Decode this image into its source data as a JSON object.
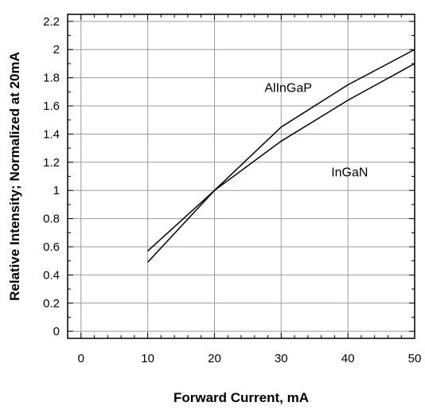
{
  "chart_data": {
    "type": "line",
    "xlabel": "Forward Current, mA",
    "ylabel": "Relative Intensity; Normalized at 20mA",
    "xlim": [
      -2,
      50
    ],
    "ylim": [
      -0.05,
      2.25
    ],
    "xticks": [
      0,
      10,
      20,
      30,
      40,
      50
    ],
    "yticks": [
      0,
      0.2,
      0.4,
      0.6,
      0.8,
      1,
      1.2,
      1.4,
      1.6,
      1.8,
      2,
      2.2
    ],
    "xtick_labels": [
      "0",
      "10",
      "20",
      "30",
      "40",
      "50"
    ],
    "ytick_labels": [
      "0",
      "0.2",
      "0.4",
      "0.6",
      "0.8",
      "1",
      "1.2",
      "1.4",
      "1.6",
      "1.8",
      "2",
      "2.2"
    ],
    "grid": true,
    "series": [
      {
        "x": [
          10,
          20,
          30,
          40,
          50
        ],
        "values": [
          0.49,
          1.0,
          1.45,
          1.75,
          2.0
        ]
      },
      {
        "x": [
          10,
          20,
          30,
          40,
          50
        ],
        "values": [
          0.57,
          1.0,
          1.35,
          1.64,
          1.9
        ]
      }
    ],
    "annotations": [
      {
        "text": "AlInGaP",
        "x": 27.5,
        "y": 1.7
      },
      {
        "text": "InGaN",
        "x": 37.5,
        "y": 1.1
      }
    ],
    "line_color": "#000000",
    "grid_color": "#9a9a9a"
  }
}
